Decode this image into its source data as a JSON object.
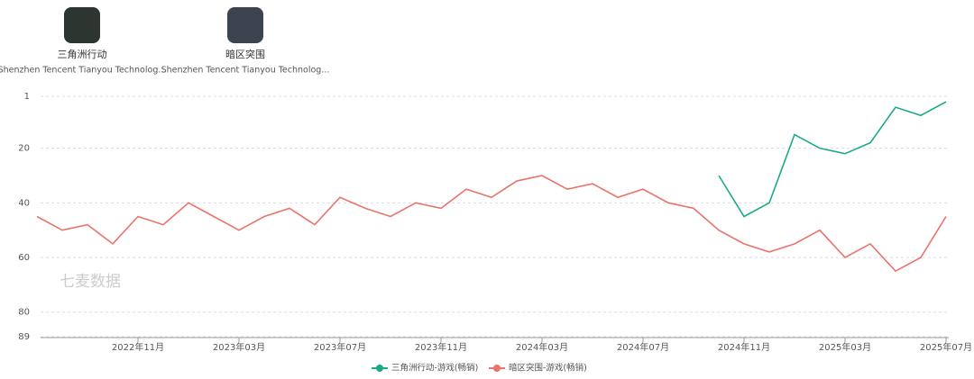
{
  "apps": [
    {
      "name": "三角洲行动",
      "developer": "Shenzhen Tencent Tianyou Technolog..."
    },
    {
      "name": "暗区突围",
      "developer": "Shenzhen Tencent Tianyou Technolog..."
    }
  ],
  "watermark": "七麦数据",
  "chart_data": {
    "type": "line",
    "x": [
      "2022-07",
      "2022-08",
      "2022-09",
      "2022-10",
      "2022-11",
      "2022-12",
      "2023-01",
      "2023-02",
      "2023-03",
      "2023-04",
      "2023-05",
      "2023-06",
      "2023-07",
      "2023-08",
      "2023-09",
      "2023-10",
      "2023-11",
      "2023-12",
      "2024-01",
      "2024-02",
      "2024-03",
      "2024-04",
      "2024-05",
      "2024-06",
      "2024-07",
      "2024-08",
      "2024-09",
      "2024-10",
      "2024-11",
      "2024-12",
      "2025-01",
      "2025-02",
      "2025-03",
      "2025-04",
      "2025-05",
      "2025-06",
      "2025-07"
    ],
    "series": [
      {
        "name": "三角洲行动-游戏(畅销)",
        "color": "#1aaa8a",
        "values": [
          null,
          null,
          null,
          null,
          null,
          null,
          null,
          null,
          null,
          null,
          null,
          null,
          null,
          null,
          null,
          null,
          null,
          null,
          null,
          null,
          null,
          null,
          null,
          null,
          null,
          null,
          null,
          30,
          45,
          40,
          15,
          20,
          22,
          18,
          5,
          8,
          3
        ]
      },
      {
        "name": "暗区突围-游戏(畅销)",
        "color": "#e8746a",
        "values": [
          45,
          50,
          48,
          55,
          45,
          48,
          40,
          45,
          50,
          45,
          42,
          48,
          38,
          42,
          45,
          40,
          42,
          35,
          38,
          32,
          30,
          35,
          33,
          38,
          35,
          40,
          42,
          50,
          55,
          58,
          55,
          50,
          60,
          55,
          65,
          60,
          45
        ]
      }
    ],
    "ylim": [
      1,
      89
    ],
    "inverted": true,
    "yticks": [
      1,
      20,
      40,
      60,
      80,
      89
    ],
    "xticks": [
      {
        "value": "2022-11",
        "label": "2022年11月"
      },
      {
        "value": "2023-03",
        "label": "2023年03月"
      },
      {
        "value": "2023-07",
        "label": "2023年07月"
      },
      {
        "value": "2023-11",
        "label": "2023年11月"
      },
      {
        "value": "2024-03",
        "label": "2024年03月"
      },
      {
        "value": "2024-07",
        "label": "2024年07月"
      },
      {
        "value": "2024-11",
        "label": "2024年11月"
      },
      {
        "value": "2025-03",
        "label": "2025年03月"
      },
      {
        "value": "2025-07",
        "label": "2025年07月"
      }
    ],
    "grid": true
  }
}
